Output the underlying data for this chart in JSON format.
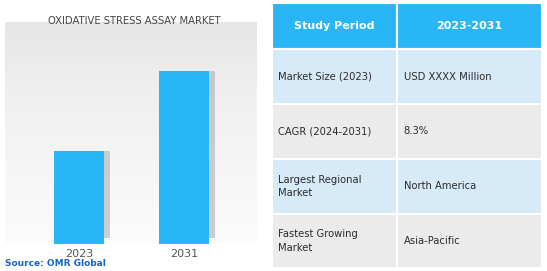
{
  "title": "OXIDATIVE STRESS ASSAY MARKET",
  "bar_categories": [
    "2023",
    "2031"
  ],
  "bar_values": [
    0.42,
    0.78
  ],
  "bar_color": "#29B6F6",
  "shadow_color": "#B0B0B0",
  "source_text": "Source: OMR Global",
  "table_header_bg": "#29B6F6",
  "table_header_text_color": "#FFFFFF",
  "table_row_colors": [
    "#D6EAF8",
    "#EBEBEB",
    "#D6EAF8",
    "#EBEBEB"
  ],
  "table_col1": [
    "Market Size (2023)",
    "CAGR (2024-2031)",
    "Largest Regional\nMarket",
    "Fastest Growing\nMarket"
  ],
  "table_col2": [
    "USD XXXX Million",
    "8.3%",
    "North America",
    "Asia-Pacific"
  ],
  "table_header_col1": "Study Period",
  "table_header_col2": "2023-2031",
  "left_bg_color": "#E8E8E8",
  "chart_border_color": "#CCCCCC"
}
